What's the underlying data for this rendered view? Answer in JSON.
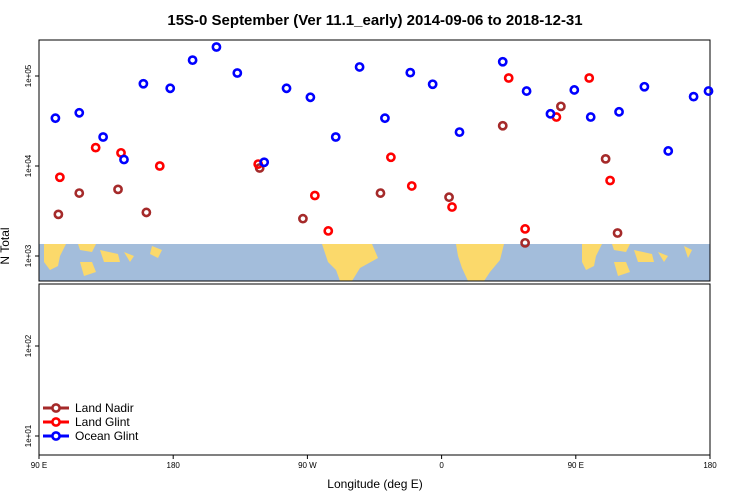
{
  "chart_data": {
    "type": "scatter",
    "title": "15S-0 September (Ver 11.1_early)   2014-09-06 to 2018-12-31",
    "xlabel": "Longitude (deg E)",
    "ylabel": "N Total",
    "y_scale": "log10",
    "x_ticks": [
      {
        "value": 90,
        "label": "90 E"
      },
      {
        "value": 180,
        "label": "180"
      },
      {
        "value": 270,
        "label": "90 W"
      },
      {
        "value": 360,
        "label": "0"
      },
      {
        "value": 450,
        "label": "90 E"
      },
      {
        "value": 540,
        "label": "180"
      }
    ],
    "y_ticks": [
      {
        "value": 10,
        "label": "1e+01"
      },
      {
        "value": 100,
        "label": "1e+02"
      },
      {
        "value": 1000,
        "label": "1e+03"
      },
      {
        "value": 10000,
        "label": "1e+04"
      },
      {
        "value": 100000,
        "label": "1e+05"
      }
    ],
    "legend_position": "bottom-left",
    "series": [
      {
        "name": "Land Nadir",
        "color": "#a52a2a",
        "points": [
          {
            "x": 103,
            "y": 2900
          },
          {
            "x": 117,
            "y": 5000
          },
          {
            "x": 143,
            "y": 5500
          },
          {
            "x": 162,
            "y": 3050
          },
          {
            "x": 238,
            "y": 9500
          },
          {
            "x": 267,
            "y": 2600
          },
          {
            "x": 319,
            "y": 5000
          },
          {
            "x": 365,
            "y": 4500
          },
          {
            "x": 401,
            "y": 28000
          },
          {
            "x": 416,
            "y": 1400
          },
          {
            "x": 440,
            "y": 46000
          },
          {
            "x": 470,
            "y": 12000
          },
          {
            "x": 478,
            "y": 1800
          }
        ]
      },
      {
        "name": "Land Glint",
        "color": "#ff0000",
        "points": [
          {
            "x": 104,
            "y": 7500
          },
          {
            "x": 128,
            "y": 16000
          },
          {
            "x": 145,
            "y": 14000
          },
          {
            "x": 171,
            "y": 10000
          },
          {
            "x": 237,
            "y": 10500
          },
          {
            "x": 275,
            "y": 4700
          },
          {
            "x": 284,
            "y": 1900
          },
          {
            "x": 326,
            "y": 12500
          },
          {
            "x": 340,
            "y": 6000
          },
          {
            "x": 367,
            "y": 3500
          },
          {
            "x": 405,
            "y": 95000
          },
          {
            "x": 416,
            "y": 2000
          },
          {
            "x": 437,
            "y": 35000
          },
          {
            "x": 459,
            "y": 95000
          },
          {
            "x": 473,
            "y": 6900
          }
        ]
      },
      {
        "name": "Ocean Glint",
        "color": "#0000ff",
        "points": [
          {
            "x": 101,
            "y": 34000
          },
          {
            "x": 117,
            "y": 39000
          },
          {
            "x": 133,
            "y": 21000
          },
          {
            "x": 147,
            "y": 11800
          },
          {
            "x": 160,
            "y": 82000
          },
          {
            "x": 178,
            "y": 73000
          },
          {
            "x": 193,
            "y": 150000
          },
          {
            "x": 209,
            "y": 210000
          },
          {
            "x": 223,
            "y": 108000
          },
          {
            "x": 241,
            "y": 11000
          },
          {
            "x": 256,
            "y": 73000
          },
          {
            "x": 272,
            "y": 58000
          },
          {
            "x": 289,
            "y": 21000
          },
          {
            "x": 305,
            "y": 126000
          },
          {
            "x": 322,
            "y": 34000
          },
          {
            "x": 339,
            "y": 109000
          },
          {
            "x": 354,
            "y": 81000
          },
          {
            "x": 372,
            "y": 23800
          },
          {
            "x": 401,
            "y": 144000
          },
          {
            "x": 417,
            "y": 68000
          },
          {
            "x": 433,
            "y": 38000
          },
          {
            "x": 449,
            "y": 70000
          },
          {
            "x": 460,
            "y": 35000
          },
          {
            "x": 479,
            "y": 40000
          },
          {
            "x": 496,
            "y": 76000
          },
          {
            "x": 512,
            "y": 14700
          },
          {
            "x": 529,
            "y": 59000
          },
          {
            "x": 539,
            "y": 68000
          }
        ]
      }
    ]
  }
}
